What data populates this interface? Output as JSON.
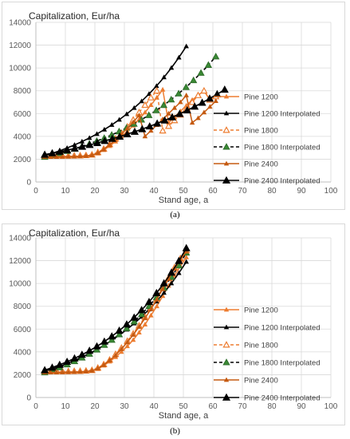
{
  "panel_labels": [
    "(a)",
    "(b)"
  ],
  "chart_data": [
    {
      "type": "line",
      "panel": "(a)",
      "title": "",
      "ylabel": "Capitalization,  Eur/ha",
      "xlabel": "Stand age, a",
      "xlim": [
        0,
        100
      ],
      "ylim": [
        0,
        14000
      ],
      "xticks": [
        0,
        10,
        20,
        30,
        40,
        50,
        60,
        70,
        80,
        90,
        100
      ],
      "yticks": [
        0,
        2000,
        4000,
        6000,
        8000,
        10000,
        12000,
        14000
      ],
      "grid": true,
      "legend_position": "right",
      "series": [
        {
          "name": "Pine 1200",
          "color": "#ed7d31",
          "dash": "solid",
          "marker": "small-triangle",
          "x": [
            3,
            5,
            7,
            9,
            11,
            13,
            15,
            17,
            19,
            21,
            23,
            25,
            27,
            29,
            31,
            33,
            35,
            37,
            39,
            41,
            43,
            45,
            47,
            49,
            51,
            53,
            55,
            57,
            59,
            61
          ],
          "y": [
            2200,
            2200,
            2220,
            2230,
            2240,
            2250,
            2260,
            2280,
            2320,
            2500,
            2800,
            3150,
            3550,
            4000,
            4450,
            4950,
            5500,
            6100,
            6750,
            7400,
            8100,
            5200,
            5700,
            6200,
            6700,
            7200,
            7600,
            8000,
            7200,
            7500
          ]
        },
        {
          "name": "Pine 1200 Interpolated",
          "color": "#000000",
          "dash": "solid",
          "marker": "small-triangle",
          "x": [
            3,
            51
          ],
          "y": [
            2300,
            11900
          ]
        },
        {
          "name": "Pine 1800",
          "color": "#ed7d31",
          "dash": "dashed",
          "marker": "open-triangle",
          "x": [
            3,
            5,
            7,
            9,
            11,
            13,
            15,
            17,
            19,
            21,
            23,
            25,
            27,
            29,
            31,
            33,
            35,
            37,
            39,
            41,
            43,
            45,
            47,
            49,
            51,
            53,
            55,
            57,
            59,
            61
          ],
          "y": [
            2300,
            2300,
            2300,
            2300,
            2300,
            2310,
            2320,
            2340,
            2400,
            2600,
            2900,
            3300,
            3800,
            4300,
            4850,
            5450,
            6100,
            6750,
            7400,
            8000,
            4500,
            4900,
            5400,
            5900,
            6400,
            7000,
            7600,
            8000,
            7200,
            7500
          ]
        },
        {
          "name": "Pine 1800 Interpolated",
          "color": "#000000",
          "dash": "dashed",
          "marker": "green-triangle",
          "x": [
            3,
            61
          ],
          "y": [
            2200,
            11000
          ]
        },
        {
          "name": "Pine 2400",
          "color": "#c55a11",
          "dash": "solid",
          "marker": "small-triangle",
          "x": [
            3,
            5,
            7,
            9,
            11,
            13,
            15,
            17,
            19,
            21,
            23,
            25,
            27,
            29,
            31,
            33,
            35,
            37,
            39,
            41,
            43,
            45,
            47,
            49,
            51,
            53,
            55,
            57,
            59,
            61
          ],
          "y": [
            2200,
            2200,
            2200,
            2210,
            2220,
            2230,
            2250,
            2280,
            2350,
            2550,
            2850,
            3250,
            3700,
            4200,
            4700,
            5250,
            5850,
            4000,
            4500,
            5000,
            5500,
            6000,
            6500,
            7000,
            7600,
            5200,
            5600,
            6100,
            6600,
            7100
          ]
        },
        {
          "name": "Pine 2400 Interpolated",
          "color": "#000000",
          "dash": "solid",
          "marker": "filled-triangle",
          "x": [
            3,
            64
          ],
          "y": [
            2400,
            8100
          ]
        }
      ]
    },
    {
      "type": "line",
      "panel": "(b)",
      "title": "",
      "ylabel": "Capitalization,  Eur/ha",
      "xlabel": "Stand age, a",
      "xlim": [
        0,
        100
      ],
      "ylim": [
        0,
        14000
      ],
      "xticks": [
        0,
        10,
        20,
        30,
        40,
        50,
        60,
        70,
        80,
        90,
        100
      ],
      "yticks": [
        0,
        2000,
        4000,
        6000,
        8000,
        10000,
        12000,
        14000
      ],
      "grid": true,
      "legend_position": "right",
      "series": [
        {
          "name": "Pine 1200",
          "color": "#ed7d31",
          "dash": "solid",
          "marker": "small-triangle",
          "x": [
            3,
            5,
            7,
            9,
            11,
            13,
            15,
            17,
            19,
            21,
            23,
            25,
            27,
            29,
            31,
            33,
            35,
            37,
            39,
            41,
            43,
            45,
            47,
            49,
            51
          ],
          "y": [
            2200,
            2200,
            2220,
            2230,
            2240,
            2250,
            2260,
            2280,
            2320,
            2500,
            2800,
            3150,
            3550,
            4000,
            4500,
            5050,
            5700,
            6400,
            7200,
            8000,
            8900,
            9800,
            10700,
            11500,
            12300
          ]
        },
        {
          "name": "Pine 1200 Interpolated",
          "color": "#000000",
          "dash": "solid",
          "marker": "small-triangle",
          "x": [
            3,
            51
          ],
          "y": [
            2300,
            11900
          ]
        },
        {
          "name": "Pine 1800",
          "color": "#ed7d31",
          "dash": "dashed",
          "marker": "open-triangle",
          "x": [
            3,
            5,
            7,
            9,
            11,
            13,
            15,
            17,
            19,
            21,
            23,
            25,
            27,
            29,
            31,
            33,
            35,
            37,
            39,
            41,
            43,
            45,
            47,
            49,
            51
          ],
          "y": [
            2300,
            2300,
            2300,
            2300,
            2300,
            2310,
            2320,
            2340,
            2400,
            2600,
            2900,
            3300,
            3800,
            4350,
            4950,
            5600,
            6300,
            7050,
            7850,
            8700,
            9600,
            10500,
            11400,
            12200,
            12900
          ]
        },
        {
          "name": "Pine 1800 Interpolated",
          "color": "#000000",
          "dash": "dashed",
          "marker": "green-triangle",
          "x": [
            3,
            51
          ],
          "y": [
            2200,
            12700
          ]
        },
        {
          "name": "Pine 2400",
          "color": "#c55a11",
          "dash": "solid",
          "marker": "small-triangle",
          "x": [
            3,
            5,
            7,
            9,
            11,
            13,
            15,
            17,
            19,
            21,
            23,
            25,
            27,
            29,
            31,
            33,
            35,
            37,
            39,
            41,
            43,
            45,
            47,
            49,
            51
          ],
          "y": [
            2200,
            2200,
            2200,
            2210,
            2220,
            2230,
            2250,
            2280,
            2350,
            2550,
            2850,
            3250,
            3700,
            4250,
            4850,
            5500,
            6200,
            6950,
            7750,
            8600,
            9500,
            10400,
            11300,
            12100,
            12800
          ]
        },
        {
          "name": "Pine 2400 Interpolated",
          "color": "#000000",
          "dash": "solid",
          "marker": "filled-triangle",
          "x": [
            3,
            51
          ],
          "y": [
            2400,
            13100
          ]
        }
      ]
    }
  ]
}
